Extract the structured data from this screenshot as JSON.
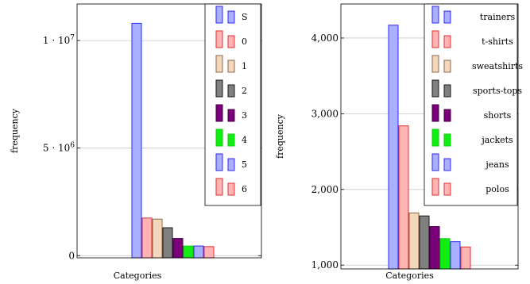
{
  "chart_data": [
    {
      "type": "bar",
      "xlabel": "Categories",
      "ylabel": "frequency",
      "ylim": [
        -100000,
        11700000
      ],
      "grid": "horizontal",
      "legend_position": "top-right",
      "ticks": [
        {
          "value": 0,
          "base": "0",
          "exp": ""
        },
        {
          "value": 5000000,
          "base": "5 · 10",
          "exp": "6"
        },
        {
          "value": 10000000,
          "base": "1 · 10",
          "exp": "7"
        }
      ],
      "series": [
        {
          "name": "S",
          "value": 10800000,
          "color": "#aab0ff",
          "stroke": "#2b2bff"
        },
        {
          "name": "0",
          "value": 1750000,
          "color": "#ffb3b3",
          "stroke": "#e03030"
        },
        {
          "name": "1",
          "value": 1700000,
          "color": "#f2d7bd",
          "stroke": "#8c6a4a"
        },
        {
          "name": "2",
          "value": 1300000,
          "color": "#808080",
          "stroke": "#1a1a1a"
        },
        {
          "name": "3",
          "value": 800000,
          "color": "#7a007a",
          "stroke": "#4a004a"
        },
        {
          "name": "4",
          "value": 450000,
          "color": "#11ee11",
          "stroke": "#11cc11"
        },
        {
          "name": "5",
          "value": 450000,
          "color": "#aab0ff",
          "stroke": "#2b2bff"
        },
        {
          "name": "6",
          "value": 420000,
          "color": "#ffb3b3",
          "stroke": "#e03030"
        }
      ]
    },
    {
      "type": "bar",
      "xlabel": "Categories",
      "ylabel": "frequency",
      "ylim": [
        950,
        4450
      ],
      "grid": "horizontal",
      "legend_position": "top-right",
      "ticks": [
        {
          "value": 1000,
          "base": "1,000",
          "exp": ""
        },
        {
          "value": 2000,
          "base": "2,000",
          "exp": ""
        },
        {
          "value": 3000,
          "base": "3,000",
          "exp": ""
        },
        {
          "value": 4000,
          "base": "4,000",
          "exp": ""
        }
      ],
      "series": [
        {
          "name": "trainers",
          "value": 4170,
          "color": "#aab0ff",
          "stroke": "#2b2bff"
        },
        {
          "name": "t-shirts",
          "value": 2840,
          "color": "#ffb3b3",
          "stroke": "#e03030"
        },
        {
          "name": "sweatshirts",
          "value": 1690,
          "color": "#f2d7bd",
          "stroke": "#8c6a4a"
        },
        {
          "name": "sports-tops",
          "value": 1650,
          "color": "#808080",
          "stroke": "#1a1a1a"
        },
        {
          "name": "shorts",
          "value": 1510,
          "color": "#7a007a",
          "stroke": "#4a004a"
        },
        {
          "name": "jackets",
          "value": 1350,
          "color": "#11ee11",
          "stroke": "#11cc11"
        },
        {
          "name": "jeans",
          "value": 1310,
          "color": "#aab0ff",
          "stroke": "#2b2bff"
        },
        {
          "name": "polos",
          "value": 1240,
          "color": "#ffb3b3",
          "stroke": "#e03030"
        }
      ]
    }
  ]
}
